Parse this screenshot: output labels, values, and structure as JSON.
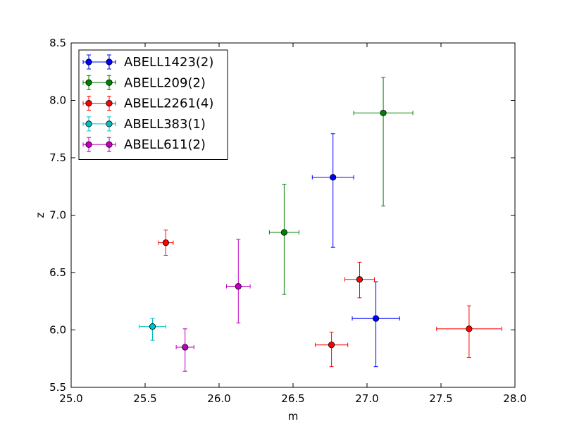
{
  "chart_data": {
    "type": "scatter",
    "title": "",
    "xlabel": "m",
    "ylabel": "z",
    "xlim": [
      25.0,
      28.0
    ],
    "ylim": [
      5.5,
      8.5
    ],
    "xticks": [
      "25.0",
      "25.5",
      "26.0",
      "26.5",
      "27.0",
      "27.5",
      "28.0"
    ],
    "yticks": [
      "5.5",
      "6.0",
      "6.5",
      "7.0",
      "7.5",
      "8.0",
      "8.5"
    ],
    "grid": false,
    "legend_position": "top-left",
    "series": [
      {
        "name": "ABELL1423(2)",
        "color": "#0000ff",
        "points": [
          {
            "x": 26.77,
            "y": 7.33,
            "xerr": 0.14,
            "yerr_low": 0.61,
            "yerr_high": 0.38
          },
          {
            "x": 27.06,
            "y": 6.1,
            "xerr": 0.16,
            "yerr_low": 0.42,
            "yerr_high": 0.32
          }
        ]
      },
      {
        "name": "ABELL209(2)",
        "color": "#008000",
        "points": [
          {
            "x": 27.11,
            "y": 7.89,
            "xerr": 0.2,
            "yerr_low": 0.81,
            "yerr_high": 0.31
          },
          {
            "x": 26.44,
            "y": 6.85,
            "xerr": 0.1,
            "yerr_low": 0.54,
            "yerr_high": 0.42
          }
        ]
      },
      {
        "name": "ABELL2261(4)",
        "color": "#ff0000",
        "points": [
          {
            "x": 25.64,
            "y": 6.76,
            "xerr": 0.05,
            "yerr_low": 0.11,
            "yerr_high": 0.11
          },
          {
            "x": 26.95,
            "y": 6.44,
            "xerr": 0.1,
            "yerr_low": 0.16,
            "yerr_high": 0.15
          },
          {
            "x": 26.76,
            "y": 5.87,
            "xerr": 0.11,
            "yerr_low": 0.19,
            "yerr_high": 0.11
          },
          {
            "x": 27.69,
            "y": 6.01,
            "xerr": 0.22,
            "yerr_low": 0.25,
            "yerr_high": 0.2
          }
        ]
      },
      {
        "name": "ABELL383(1)",
        "color": "#00bfbf",
        "points": [
          {
            "x": 25.55,
            "y": 6.03,
            "xerr": 0.09,
            "yerr_low": 0.12,
            "yerr_high": 0.07
          }
        ]
      },
      {
        "name": "ABELL611(2)",
        "color": "#bf00bf",
        "points": [
          {
            "x": 26.13,
            "y": 6.38,
            "xerr": 0.08,
            "yerr_low": 0.32,
            "yerr_high": 0.41
          },
          {
            "x": 25.77,
            "y": 5.85,
            "xerr": 0.06,
            "yerr_low": 0.21,
            "yerr_high": 0.16
          }
        ]
      }
    ]
  }
}
